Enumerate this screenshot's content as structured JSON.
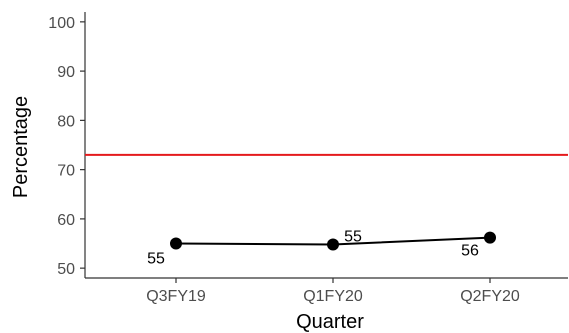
{
  "chart_data": {
    "type": "line",
    "categories": [
      "Q3FY19",
      "Q1FY20",
      "Q2FY20"
    ],
    "series": [
      {
        "values": [
          55,
          54.8,
          56.2
        ],
        "data_labels": [
          "55",
          "55",
          "56"
        ]
      }
    ],
    "reference_line": {
      "y": 73,
      "color": "#e41a1c"
    },
    "xlabel": "Quarter",
    "ylabel": "Percentage",
    "ylim": [
      48,
      102
    ],
    "yticks": [
      50,
      60,
      70,
      80,
      90,
      100
    ],
    "grid": false,
    "line_color": "#000000"
  }
}
